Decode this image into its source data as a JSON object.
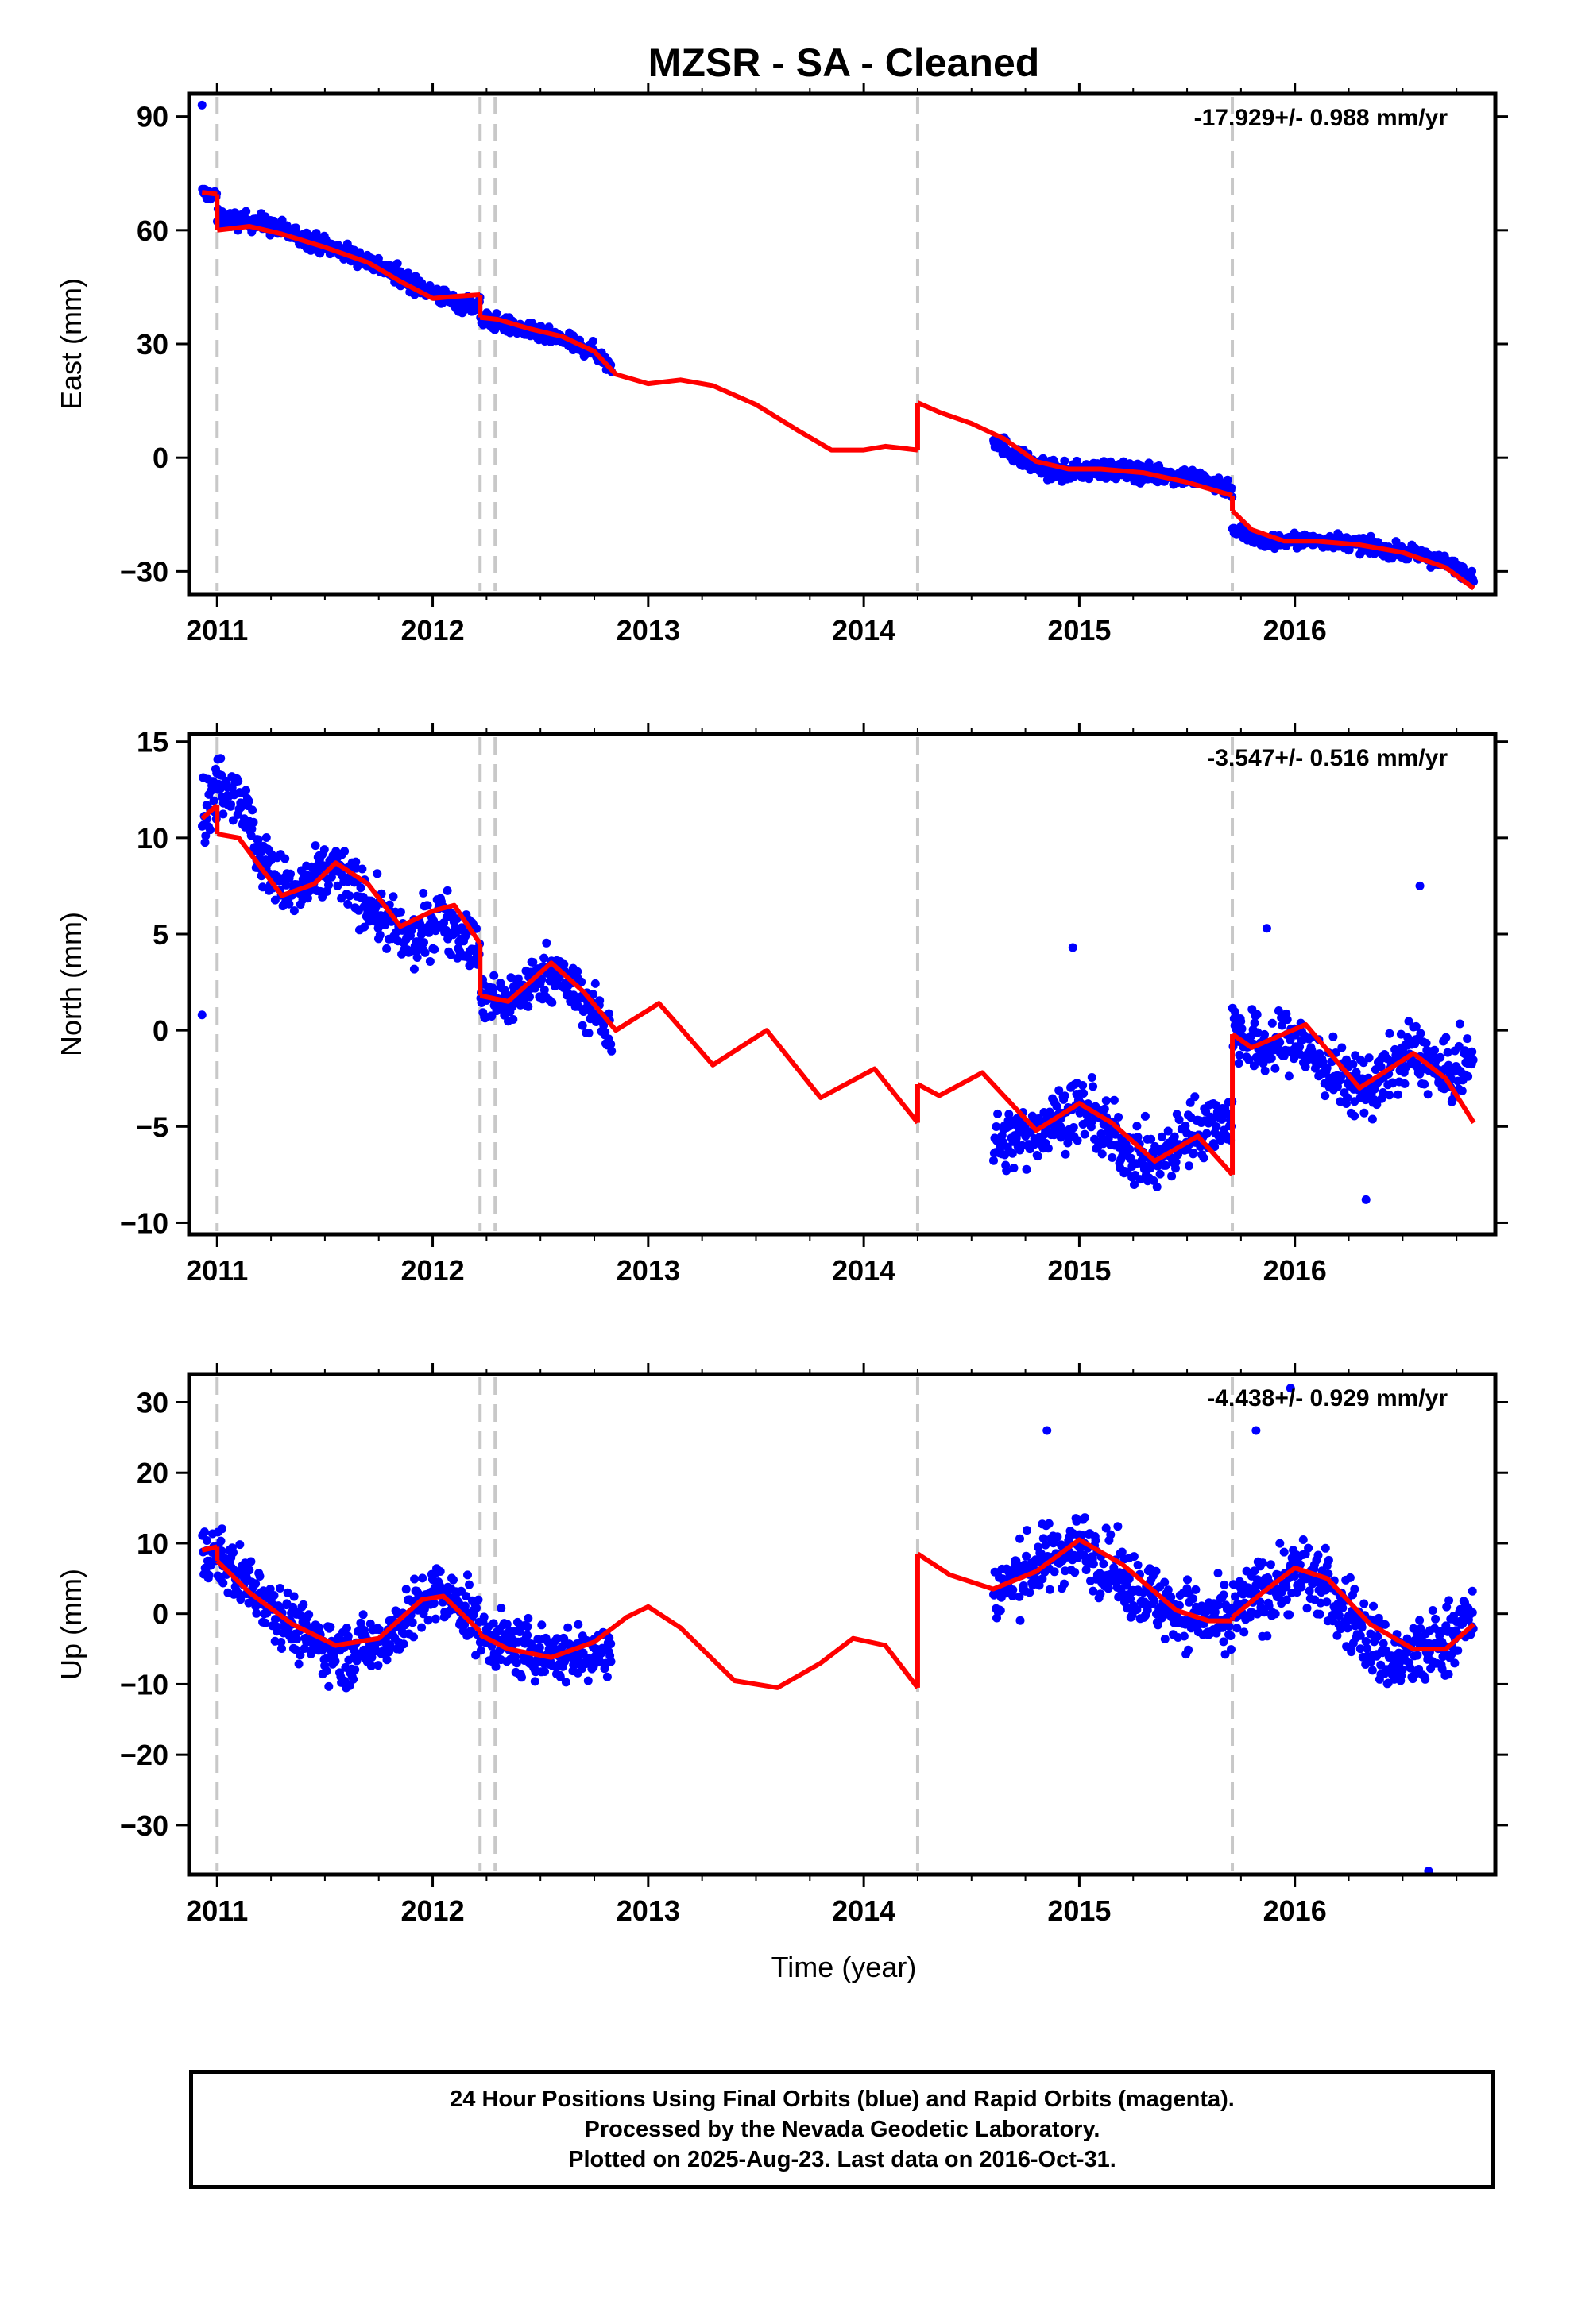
{
  "title": "MZSR  - SA - Cleaned",
  "xlabel": "Time (year)",
  "colors": {
    "data": "#0000ff",
    "model": "#ff0000",
    "breaks": "#c8c8c8",
    "frame": "#000000"
  },
  "footer": {
    "line1": "24 Hour Positions Using Final Orbits (blue) and Rapid Orbits (magenta).",
    "line2": "Processed by the Nevada Geodetic Laboratory.",
    "line3": "Plotted on 2025-Aug-23. Last data on 2016-Oct-31."
  },
  "chart_data": [
    {
      "type": "scatter",
      "component": "East",
      "ylabel": "East (mm)",
      "rate": "-17.929+/- 0.988 mm/yr",
      "xlim": [
        2010.87,
        2016.93
      ],
      "ylim": [
        -36,
        96
      ],
      "yticks": [
        -30,
        0,
        30,
        60,
        90
      ],
      "xticks": [
        2011,
        2012,
        2013,
        2014,
        2015,
        2016
      ],
      "break_epochs": [
        2011.0,
        2012.22,
        2012.29,
        2014.25,
        2015.71
      ],
      "outliers": [
        [
          2010.93,
          93
        ]
      ],
      "segments": [
        {
          "x0": 2010.93,
          "x1": 2011.0,
          "points": [
            [
              2010.93,
              70
            ],
            [
              2011.0,
              69
            ]
          ],
          "spread": 1.5
        },
        {
          "x0": 2011.0,
          "x1": 2012.22,
          "points": [
            [
              2011.0,
              63
            ],
            [
              2011.2,
              62
            ],
            [
              2011.45,
              57
            ],
            [
              2011.7,
              52
            ],
            [
              2011.95,
              45
            ],
            [
              2012.1,
              41
            ],
            [
              2012.22,
              40
            ]
          ],
          "spread": 2.2
        },
        {
          "x0": 2012.22,
          "x1": 2012.83,
          "points": [
            [
              2012.22,
              37
            ],
            [
              2012.4,
              34
            ],
            [
              2012.6,
              31
            ],
            [
              2012.75,
              28
            ],
            [
              2012.83,
              24
            ]
          ],
          "spread": 2
        },
        {
          "x0": 2014.6,
          "x1": 2015.71,
          "points": [
            [
              2014.6,
              5
            ],
            [
              2014.75,
              -1
            ],
            [
              2014.9,
              -4
            ],
            [
              2015.1,
              -3
            ],
            [
              2015.3,
              -4
            ],
            [
              2015.5,
              -5
            ],
            [
              2015.71,
              -8
            ]
          ],
          "spread": 2.3
        },
        {
          "x0": 2015.71,
          "x1": 2016.83,
          "points": [
            [
              2015.71,
              -19
            ],
            [
              2015.85,
              -22
            ],
            [
              2016.0,
              -22
            ],
            [
              2016.2,
              -22
            ],
            [
              2016.4,
              -24
            ],
            [
              2016.6,
              -26
            ],
            [
              2016.75,
              -29
            ],
            [
              2016.83,
              -31
            ]
          ],
          "spread": 1.8
        }
      ],
      "model": [
        [
          [
            2010.93,
            70
          ],
          [
            2011.0,
            69.5
          ]
        ],
        [
          [
            2011.0,
            60
          ],
          [
            2011.15,
            61
          ],
          [
            2011.3,
            59
          ],
          [
            2011.5,
            55.5
          ],
          [
            2011.7,
            51.5
          ],
          [
            2011.85,
            46.5
          ],
          [
            2012.0,
            42
          ],
          [
            2012.1,
            42.5
          ],
          [
            2012.22,
            43
          ]
        ],
        [
          [
            2012.22,
            37
          ],
          [
            2012.3,
            36.5
          ],
          [
            2012.45,
            34
          ],
          [
            2012.6,
            32
          ],
          [
            2012.75,
            28
          ],
          [
            2012.85,
            22
          ],
          [
            2013.0,
            19.5
          ],
          [
            2013.15,
            20.5
          ],
          [
            2013.3,
            19
          ],
          [
            2013.5,
            14
          ],
          [
            2013.7,
            7
          ],
          [
            2013.85,
            2
          ],
          [
            2014.0,
            2
          ],
          [
            2014.1,
            3
          ],
          [
            2014.25,
            2
          ]
        ],
        [
          [
            2014.25,
            14.5
          ],
          [
            2014.35,
            12
          ],
          [
            2014.5,
            9
          ],
          [
            2014.65,
            5
          ],
          [
            2014.8,
            -1
          ],
          [
            2014.95,
            -3
          ],
          [
            2015.1,
            -3
          ],
          [
            2015.3,
            -4
          ],
          [
            2015.5,
            -6.5
          ],
          [
            2015.71,
            -10
          ]
        ],
        [
          [
            2015.71,
            -14
          ],
          [
            2015.8,
            -19
          ],
          [
            2015.95,
            -22
          ],
          [
            2016.1,
            -22
          ],
          [
            2016.3,
            -23
          ],
          [
            2016.5,
            -25
          ],
          [
            2016.7,
            -29
          ],
          [
            2016.83,
            -34.5
          ]
        ]
      ]
    },
    {
      "type": "scatter",
      "component": "North",
      "ylabel": "North (mm)",
      "rate": "-3.547+/- 0.516 mm/yr",
      "xlim": [
        2010.87,
        2016.93
      ],
      "ylim": [
        -10.6,
        15.4
      ],
      "yticks": [
        -10,
        -5,
        0,
        5,
        10,
        15
      ],
      "xticks": [
        2011,
        2012,
        2013,
        2014,
        2015,
        2016
      ],
      "break_epochs": [
        2011.0,
        2012.22,
        2012.29,
        2014.25,
        2015.71
      ],
      "outliers": [
        [
          2010.93,
          0.8
        ],
        [
          2014.97,
          4.3
        ],
        [
          2015.87,
          5.3
        ],
        [
          2016.33,
          -8.8
        ],
        [
          2016.58,
          7.5
        ]
      ],
      "segments": [
        {
          "x0": 2010.93,
          "x1": 2011.0,
          "points": [
            [
              2010.93,
              11
            ],
            [
              2011.0,
              12.5
            ]
          ],
          "spread": 1.6
        },
        {
          "x0": 2011.0,
          "x1": 2012.22,
          "points": [
            [
              2011.0,
              13
            ],
            [
              2011.1,
              12.5
            ],
            [
              2011.2,
              9
            ],
            [
              2011.35,
              7
            ],
            [
              2011.55,
              8.5
            ],
            [
              2011.75,
              6
            ],
            [
              2011.9,
              4.5
            ],
            [
              2012.05,
              6
            ],
            [
              2012.22,
              4
            ]
          ],
          "spread": 1.4
        },
        {
          "x0": 2012.22,
          "x1": 2012.83,
          "points": [
            [
              2012.22,
              1.5
            ],
            [
              2012.35,
              1.5
            ],
            [
              2012.55,
              3.2
            ],
            [
              2012.7,
              1.5
            ],
            [
              2012.83,
              0
            ]
          ],
          "spread": 1.3
        },
        {
          "x0": 2014.6,
          "x1": 2015.71,
          "points": [
            [
              2014.6,
              -6
            ],
            [
              2014.75,
              -5.5
            ],
            [
              2015.0,
              -4
            ],
            [
              2015.2,
              -6
            ],
            [
              2015.35,
              -7
            ],
            [
              2015.55,
              -5
            ],
            [
              2015.71,
              -4.5
            ]
          ],
          "spread": 1.5
        },
        {
          "x0": 2015.71,
          "x1": 2016.83,
          "points": [
            [
              2015.71,
              0
            ],
            [
              2015.85,
              -1
            ],
            [
              2016.0,
              -0.5
            ],
            [
              2016.2,
              -2.5
            ],
            [
              2016.35,
              -3
            ],
            [
              2016.55,
              -1
            ],
            [
              2016.7,
              -2.5
            ],
            [
              2016.83,
              -1.5
            ]
          ],
          "spread": 1.5
        }
      ],
      "model": [
        [
          [
            2010.93,
            11
          ],
          [
            2011.0,
            11.7
          ]
        ],
        [
          [
            2011.0,
            10.2
          ],
          [
            2011.1,
            10
          ],
          [
            2011.3,
            7
          ],
          [
            2011.45,
            7.6
          ],
          [
            2011.55,
            8.7
          ],
          [
            2011.7,
            7.6
          ],
          [
            2011.85,
            5.4
          ],
          [
            2012.0,
            6.2
          ],
          [
            2012.1,
            6.5
          ],
          [
            2012.22,
            4.5
          ]
        ],
        [
          [
            2012.22,
            1.8
          ],
          [
            2012.35,
            1.5
          ],
          [
            2012.55,
            3.5
          ],
          [
            2012.7,
            2
          ],
          [
            2012.85,
            0
          ],
          [
            2013.05,
            1.4
          ],
          [
            2013.3,
            -1.8
          ],
          [
            2013.55,
            0
          ],
          [
            2013.8,
            -3.5
          ],
          [
            2014.05,
            -2
          ],
          [
            2014.25,
            -4.8
          ]
        ],
        [
          [
            2014.25,
            -2.8
          ],
          [
            2014.35,
            -3.4
          ],
          [
            2014.55,
            -2.2
          ],
          [
            2014.8,
            -5.2
          ],
          [
            2015.0,
            -3.8
          ],
          [
            2015.15,
            -4.8
          ],
          [
            2015.35,
            -6.8
          ],
          [
            2015.55,
            -5.5
          ],
          [
            2015.71,
            -7.5
          ]
        ],
        [
          [
            2015.71,
            -0.2
          ],
          [
            2015.8,
            -0.9
          ],
          [
            2016.05,
            0.3
          ],
          [
            2016.3,
            -3
          ],
          [
            2016.55,
            -1.2
          ],
          [
            2016.7,
            -2.5
          ],
          [
            2016.83,
            -4.8
          ]
        ]
      ]
    },
    {
      "type": "scatter",
      "component": "Up",
      "ylabel": "Up (mm)",
      "rate": "-4.438+/- 0.929 mm/yr",
      "xlim": [
        2010.87,
        2016.93
      ],
      "ylim": [
        -37,
        34
      ],
      "yticks": [
        -30,
        -20,
        -10,
        0,
        10,
        20,
        30
      ],
      "xticks": [
        2011,
        2012,
        2013,
        2014,
        2015,
        2016
      ],
      "break_epochs": [
        2011.0,
        2012.22,
        2012.29,
        2014.25,
        2015.71
      ],
      "outliers": [
        [
          2015.98,
          32
        ],
        [
          2016.62,
          -36.5
        ],
        [
          2015.82,
          26
        ],
        [
          2014.85,
          26
        ]
      ],
      "segments": [
        {
          "x0": 2010.93,
          "x1": 2011.0,
          "points": [
            [
              2010.93,
              8
            ],
            [
              2011.0,
              9
            ]
          ],
          "spread": 3.5
        },
        {
          "x0": 2011.0,
          "x1": 2012.22,
          "points": [
            [
              2011.0,
              8
            ],
            [
              2011.2,
              3
            ],
            [
              2011.4,
              -3
            ],
            [
              2011.6,
              -6
            ],
            [
              2011.8,
              -3
            ],
            [
              2012.0,
              3
            ],
            [
              2012.15,
              1
            ],
            [
              2012.22,
              -2
            ]
          ],
          "spread": 4
        },
        {
          "x0": 2012.22,
          "x1": 2012.83,
          "points": [
            [
              2012.22,
              -3
            ],
            [
              2012.4,
              -5
            ],
            [
              2012.6,
              -6
            ],
            [
              2012.83,
              -5
            ]
          ],
          "spread": 3.8
        },
        {
          "x0": 2014.6,
          "x1": 2015.71,
          "points": [
            [
              2014.6,
              3
            ],
            [
              2014.8,
              7
            ],
            [
              2015.0,
              10
            ],
            [
              2015.2,
              5
            ],
            [
              2015.4,
              1
            ],
            [
              2015.6,
              -1
            ],
            [
              2015.71,
              -2
            ]
          ],
          "spread": 4.5
        },
        {
          "x0": 2015.71,
          "x1": 2016.83,
          "points": [
            [
              2015.71,
              0
            ],
            [
              2015.9,
              4
            ],
            [
              2016.05,
              6
            ],
            [
              2016.25,
              0
            ],
            [
              2016.45,
              -7
            ],
            [
              2016.65,
              -5
            ],
            [
              2016.83,
              0
            ]
          ],
          "spread": 5
        }
      ],
      "model": [
        [
          [
            2010.93,
            9
          ],
          [
            2011.0,
            9.5
          ]
        ],
        [
          [
            2011.0,
            7.5
          ],
          [
            2011.15,
            3
          ],
          [
            2011.35,
            -1.5
          ],
          [
            2011.55,
            -4.5
          ],
          [
            2011.75,
            -3.5
          ],
          [
            2011.95,
            2
          ],
          [
            2012.05,
            2.5
          ],
          [
            2012.22,
            -2.5
          ]
        ],
        [
          [
            2012.22,
            -3
          ],
          [
            2012.35,
            -5
          ],
          [
            2012.55,
            -6.2
          ],
          [
            2012.75,
            -4
          ],
          [
            2012.9,
            -0.5
          ],
          [
            2013.0,
            1
          ],
          [
            2013.15,
            -2
          ],
          [
            2013.4,
            -9.5
          ],
          [
            2013.6,
            -10.5
          ],
          [
            2013.8,
            -7
          ],
          [
            2013.95,
            -3.5
          ],
          [
            2014.1,
            -4.5
          ],
          [
            2014.25,
            -10.5
          ]
        ],
        [
          [
            2014.25,
            8.5
          ],
          [
            2014.4,
            5.5
          ],
          [
            2014.6,
            3.5
          ],
          [
            2014.8,
            6
          ],
          [
            2015.0,
            10.5
          ],
          [
            2015.2,
            7
          ],
          [
            2015.45,
            0.5
          ],
          [
            2015.6,
            -1
          ],
          [
            2015.71,
            -1
          ]
        ],
        [
          [
            2015.71,
            -0.5
          ],
          [
            2015.85,
            3
          ],
          [
            2016.0,
            6.5
          ],
          [
            2016.15,
            5
          ],
          [
            2016.35,
            -1.5
          ],
          [
            2016.55,
            -5
          ],
          [
            2016.7,
            -5
          ],
          [
            2016.83,
            -1.5
          ]
        ]
      ]
    }
  ]
}
